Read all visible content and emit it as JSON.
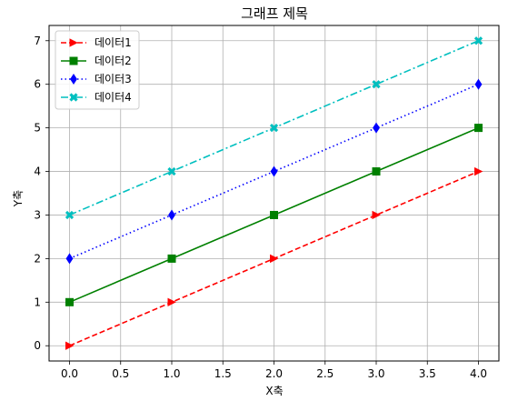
{
  "chart_data": {
    "type": "line",
    "title": "그래프 제목",
    "xlabel": "X축",
    "ylabel": "Y축",
    "x": [
      0,
      1,
      2,
      3,
      4
    ],
    "xlim": [
      -0.2,
      4.2
    ],
    "ylim": [
      -0.35,
      7.35
    ],
    "xticks": [
      0.0,
      0.5,
      1.0,
      1.5,
      2.0,
      2.5,
      3.0,
      3.5,
      4.0
    ],
    "xtick_labels": [
      "0.0",
      "0.5",
      "1.0",
      "1.5",
      "2.0",
      "2.5",
      "3.0",
      "3.5",
      "4.0"
    ],
    "yticks": [
      0,
      1,
      2,
      3,
      4,
      5,
      6,
      7
    ],
    "ytick_labels": [
      "0",
      "1",
      "2",
      "3",
      "4",
      "5",
      "6",
      "7"
    ],
    "grid": true,
    "legend_position": "top-left",
    "series": [
      {
        "name": "데이터1",
        "values": [
          0,
          1,
          2,
          3,
          4
        ],
        "color": "#ff0000",
        "linestyle": "dashed",
        "marker": "triangle-right"
      },
      {
        "name": "데이터2",
        "values": [
          1,
          2,
          3,
          4,
          5
        ],
        "color": "#008000",
        "linestyle": "solid",
        "marker": "square"
      },
      {
        "name": "데이터3",
        "values": [
          2,
          3,
          4,
          5,
          6
        ],
        "color": "#0000ff",
        "linestyle": "dotted",
        "marker": "diamond"
      },
      {
        "name": "데이터4",
        "values": [
          3,
          4,
          5,
          6,
          7
        ],
        "color": "#00bfbf",
        "linestyle": "dashdot",
        "marker": "x-filled"
      }
    ]
  }
}
